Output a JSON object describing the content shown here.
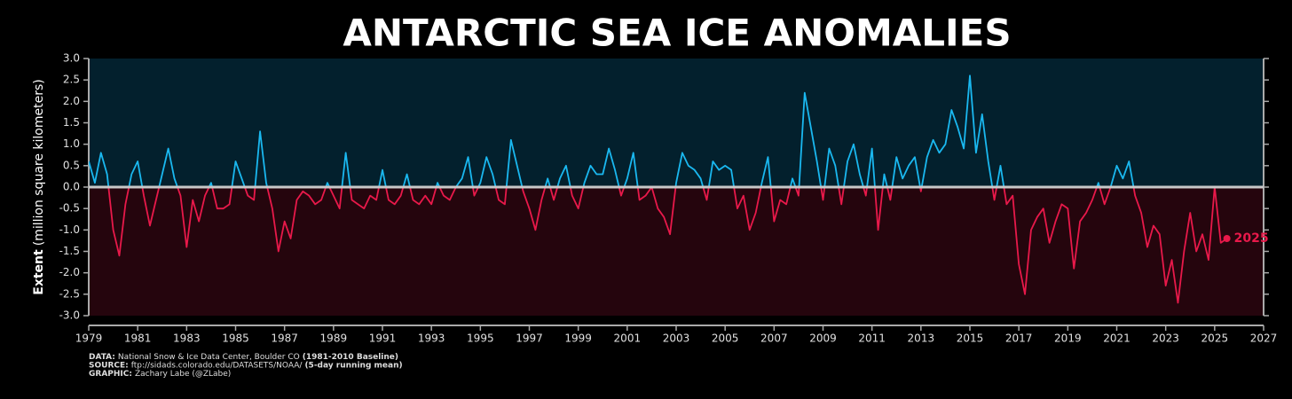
{
  "chart_data": {
    "type": "line",
    "title": "ANTARCTIC SEA ICE ANOMALIES",
    "ylabel_bold": "Extent",
    "ylabel": "(million square kilometers)",
    "annotation": "2025",
    "notes": [
      [
        {
          "text": "DATA:",
          "bold": true
        },
        {
          "text": "National Snow & Ice Data Center, Boulder CO",
          "bold": false
        },
        {
          "text": "(1981-2010 Baseline)",
          "bold": true
        }
      ],
      [
        {
          "text": "SOURCE:",
          "bold": true
        },
        {
          "text": "ftp://sidads.colorado.edu/DATASETS/NOAA/",
          "bold": false
        },
        {
          "text": "(5-day running mean)",
          "bold": true
        }
      ],
      [
        {
          "text": "GRAPHIC:",
          "bold": true
        },
        {
          "text": "Zachary Labe (@ZLabe)",
          "bold": false
        }
      ]
    ],
    "xlim": [
      1979,
      2027
    ],
    "xticks": [
      1979,
      1981,
      1983,
      1985,
      1987,
      1989,
      1991,
      1993,
      1995,
      1997,
      1999,
      2001,
      2003,
      2005,
      2007,
      2009,
      2011,
      2013,
      2015,
      2017,
      2019,
      2021,
      2023,
      2025,
      2027
    ],
    "ylim": [
      -3,
      3
    ],
    "yticks": [
      {
        "value": 3,
        "label": "3.0"
      },
      {
        "value": 2.5,
        "label": "2.5"
      },
      {
        "value": 2,
        "label": "2.0"
      },
      {
        "value": 1.5,
        "label": "1.5"
      },
      {
        "value": 1,
        "label": "1.0"
      },
      {
        "value": 0.5,
        "label": "0.5"
      },
      {
        "value": 0,
        "label": "0.0"
      },
      {
        "value": -0.5,
        "label": "-0.5"
      },
      {
        "value": -1,
        "label": "-1.0"
      },
      {
        "value": -1.5,
        "label": "-1.5"
      },
      {
        "value": -2,
        "label": "-2.0"
      },
      {
        "value": -2.5,
        "label": "-2.5"
      },
      {
        "value": -3,
        "label": "-3.0"
      }
    ],
    "positive_color": "#1ab8f0",
    "negative_color": "#e8194a",
    "x": [
      1979,
      1979.25,
      1979.5,
      1979.75,
      1980,
      1980.25,
      1980.5,
      1980.75,
      1981,
      1981.25,
      1981.5,
      1981.75,
      1982,
      1982.25,
      1982.5,
      1982.75,
      1983,
      1983.25,
      1983.5,
      1983.75,
      1984,
      1984.25,
      1984.5,
      1984.75,
      1985,
      1985.25,
      1985.5,
      1985.75,
      1986,
      1986.25,
      1986.5,
      1986.75,
      1987,
      1987.25,
      1987.5,
      1987.75,
      1988,
      1988.25,
      1988.5,
      1988.75,
      1989,
      1989.25,
      1989.5,
      1989.75,
      1990,
      1990.25,
      1990.5,
      1990.75,
      1991,
      1991.25,
      1991.5,
      1991.75,
      1992,
      1992.25,
      1992.5,
      1992.75,
      1993,
      1993.25,
      1993.5,
      1993.75,
      1994,
      1994.25,
      1994.5,
      1994.75,
      1995,
      1995.25,
      1995.5,
      1995.75,
      1996,
      1996.25,
      1996.5,
      1996.75,
      1997,
      1997.25,
      1997.5,
      1997.75,
      1998,
      1998.25,
      1998.5,
      1998.75,
      1999,
      1999.25,
      1999.5,
      1999.75,
      2000,
      2000.25,
      2000.5,
      2000.75,
      2001,
      2001.25,
      2001.5,
      2001.75,
      2002,
      2002.25,
      2002.5,
      2002.75,
      2003,
      2003.25,
      2003.5,
      2003.75,
      2004,
      2004.25,
      2004.5,
      2004.75,
      2005,
      2005.25,
      2005.5,
      2005.75,
      2006,
      2006.25,
      2006.5,
      2006.75,
      2007,
      2007.25,
      2007.5,
      2007.75,
      2008,
      2008.25,
      2008.5,
      2008.75,
      2009,
      2009.25,
      2009.5,
      2009.75,
      2010,
      2010.25,
      2010.5,
      2010.75,
      2011,
      2011.25,
      2011.5,
      2011.75,
      2012,
      2012.25,
      2012.5,
      2012.75,
      2013,
      2013.25,
      2013.5,
      2013.75,
      2014,
      2014.25,
      2014.5,
      2014.75,
      2015,
      2015.25,
      2015.5,
      2015.75,
      2016,
      2016.25,
      2016.5,
      2016.75,
      2017,
      2017.25,
      2017.5,
      2017.75,
      2018,
      2018.25,
      2018.5,
      2018.75,
      2019,
      2019.25,
      2019.5,
      2019.75,
      2020,
      2020.25,
      2020.5,
      2020.75,
      2021,
      2021.25,
      2021.5,
      2021.75,
      2022,
      2022.25,
      2022.5,
      2022.75,
      2023,
      2023.25,
      2023.5,
      2023.75,
      2024,
      2024.25,
      2024.5,
      2024.75,
      2025,
      2025.25,
      2025.5
    ],
    "series": [
      {
        "values": [
          0.6,
          0.1,
          0.8,
          0.3,
          -1.0,
          -1.6,
          -0.4,
          0.3,
          0.6,
          -0.2,
          -0.9,
          -0.3,
          0.3,
          0.9,
          0.2,
          -0.2,
          -1.4,
          -0.3,
          -0.8,
          -0.2,
          0.1,
          -0.5,
          -0.5,
          -0.4,
          0.6,
          0.2,
          -0.2,
          -0.3,
          1.3,
          0.1,
          -0.5,
          -1.5,
          -0.8,
          -1.2,
          -0.3,
          -0.1,
          -0.2,
          -0.4,
          -0.3,
          0.1,
          -0.2,
          -0.5,
          0.8,
          -0.3,
          -0.4,
          -0.5,
          -0.2,
          -0.3,
          0.4,
          -0.3,
          -0.4,
          -0.2,
          0.3,
          -0.3,
          -0.4,
          -0.2,
          -0.4,
          0.1,
          -0.2,
          -0.3,
          0.0,
          0.2,
          0.7,
          -0.2,
          0.1,
          0.7,
          0.3,
          -0.3,
          -0.4,
          1.1,
          0.5,
          -0.1,
          -0.5,
          -1.0,
          -0.3,
          0.2,
          -0.3,
          0.2,
          0.5,
          -0.2,
          -0.5,
          0.1,
          0.5,
          0.3,
          0.3,
          0.9,
          0.4,
          -0.2,
          0.2,
          0.8,
          -0.3,
          -0.2,
          0.0,
          -0.5,
          -0.7,
          -1.1,
          0.1,
          0.8,
          0.5,
          0.4,
          0.2,
          -0.3,
          0.6,
          0.4,
          0.5,
          0.4,
          -0.5,
          -0.2,
          -1.0,
          -0.6,
          0.1,
          0.7,
          -0.8,
          -0.3,
          -0.4,
          0.2,
          -0.2,
          2.2,
          1.4,
          0.6,
          -0.3,
          0.9,
          0.5,
          -0.4,
          0.6,
          1.0,
          0.3,
          -0.2,
          0.9,
          -1.0,
          0.3,
          -0.3,
          0.7,
          0.2,
          0.5,
          0.7,
          -0.1,
          0.7,
          1.1,
          0.8,
          1.0,
          1.8,
          1.4,
          0.9,
          2.6,
          0.8,
          1.7,
          0.6,
          -0.3,
          0.5,
          -0.4,
          -0.2,
          -1.8,
          -2.5,
          -1.0,
          -0.7,
          -0.5,
          -1.3,
          -0.8,
          -0.4,
          -0.5,
          -1.9,
          -0.8,
          -0.6,
          -0.3,
          0.1,
          -0.4,
          0.0,
          0.5,
          0.2,
          0.6,
          -0.2,
          -0.6,
          -1.4,
          -0.9,
          -1.1,
          -2.3,
          -1.7,
          -2.7,
          -1.5,
          -0.6,
          -1.5,
          -1.1,
          -1.7,
          0.0,
          -1.3,
          -1.2
        ]
      }
    ]
  }
}
